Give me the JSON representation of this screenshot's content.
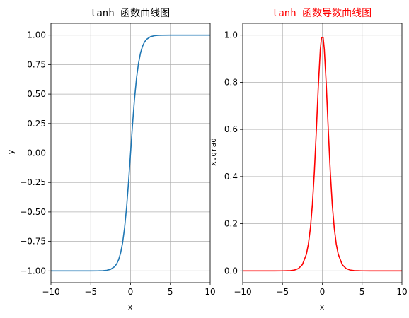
{
  "chart_data": [
    {
      "type": "line",
      "title": "tanh 函数曲线图",
      "title_color": "#000000",
      "xlabel": "x",
      "ylabel": "y",
      "xlim": [
        -10,
        10
      ],
      "ylim": [
        -1.1,
        1.1
      ],
      "xticks": [
        -10,
        -5,
        0,
        5,
        10
      ],
      "xtick_labels": [
        "−10",
        "−5",
        "0",
        "5",
        "10"
      ],
      "yticks": [
        -1.0,
        -0.75,
        -0.5,
        -0.25,
        0.0,
        0.25,
        0.5,
        0.75,
        1.0
      ],
      "ytick_labels": [
        "−1.00",
        "−0.75",
        "−0.50",
        "−0.25",
        "0.00",
        "0.25",
        "0.50",
        "0.75",
        "1.00"
      ],
      "grid": true,
      "series": [
        {
          "color": "#1f77b4",
          "x": [
            -10,
            -8,
            -6,
            -5,
            -4,
            -3.5,
            -3,
            -2.5,
            -2,
            -1.75,
            -1.5,
            -1.25,
            -1,
            -0.75,
            -0.5,
            -0.25,
            0,
            0.25,
            0.5,
            0.75,
            1,
            1.25,
            1.5,
            1.75,
            2,
            2.5,
            3,
            3.5,
            4,
            5,
            6,
            8,
            10
          ],
          "y": [
            -1.0,
            -1.0,
            -1.0,
            -0.9999,
            -0.9993,
            -0.9982,
            -0.9951,
            -0.9866,
            -0.964,
            -0.9414,
            -0.9051,
            -0.8483,
            -0.7616,
            -0.6351,
            -0.4621,
            -0.2449,
            0.0,
            0.2449,
            0.4621,
            0.6351,
            0.7616,
            0.8483,
            0.9051,
            0.9414,
            0.964,
            0.9866,
            0.9951,
            0.9982,
            0.9993,
            0.9999,
            1.0,
            1.0,
            1.0
          ]
        }
      ]
    },
    {
      "type": "line",
      "title": "tanh 函数导数曲线图",
      "title_color": "#ff0000",
      "xlabel": "x",
      "ylabel": "x.grad",
      "xlim": [
        -10,
        10
      ],
      "ylim": [
        -0.05,
        1.05
      ],
      "xticks": [
        -10,
        -5,
        0,
        5,
        10
      ],
      "xtick_labels": [
        "−10",
        "−5",
        "0",
        "5",
        "10"
      ],
      "yticks": [
        0.0,
        0.2,
        0.4,
        0.6,
        0.8,
        1.0
      ],
      "ytick_labels": [
        "0.0",
        "0.2",
        "0.4",
        "0.6",
        "0.8",
        "1.0"
      ],
      "grid": true,
      "series": [
        {
          "color": "#ff0000",
          "x": [
            -10,
            -8,
            -6,
            -5,
            -4,
            -3.5,
            -3,
            -2.5,
            -2,
            -1.75,
            -1.5,
            -1.25,
            -1,
            -0.75,
            -0.5,
            -0.25,
            -0.1,
            0,
            0.1,
            0.25,
            0.5,
            0.75,
            1,
            1.25,
            1.5,
            1.75,
            2,
            2.5,
            3,
            3.5,
            4,
            5,
            6,
            8,
            10
          ],
          "y": [
            0.0,
            0.0,
            0.0,
            0.0002,
            0.0013,
            0.0036,
            0.0099,
            0.0266,
            0.0707,
            0.1138,
            0.1807,
            0.2805,
            0.42,
            0.5966,
            0.7864,
            0.94,
            0.99,
            0.99,
            0.99,
            0.94,
            0.7864,
            0.5966,
            0.42,
            0.2805,
            0.1807,
            0.1138,
            0.0707,
            0.0266,
            0.0099,
            0.0036,
            0.0013,
            0.0002,
            0.0,
            0.0,
            0.0
          ]
        }
      ]
    }
  ]
}
